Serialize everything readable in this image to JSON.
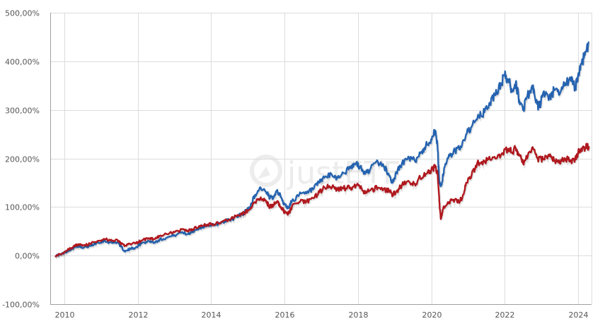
{
  "chart_data": {
    "type": "line",
    "title": "",
    "xlabel": "",
    "ylabel": "",
    "watermark": "justETF",
    "ylim": [
      -100,
      500
    ],
    "xlim": [
      2009.6,
      2024.35
    ],
    "y_ticks": [
      -100,
      0,
      100,
      200,
      300,
      400,
      500
    ],
    "y_tick_labels": [
      "-100,00%",
      "0,00%",
      "100,00%",
      "200,00%",
      "300,00%",
      "400,00%",
      "500,00%"
    ],
    "x_ticks": [
      2010,
      2012,
      2014,
      2016,
      2018,
      2020,
      2022,
      2024
    ],
    "x_tick_labels": [
      "2010",
      "2012",
      "2014",
      "2016",
      "2018",
      "2020",
      "2022",
      "2024"
    ],
    "grid": true,
    "legend": null,
    "series": [
      {
        "name": "Blue series",
        "color": "#2563b0",
        "points": [
          [
            2009.75,
            0
          ],
          [
            2009.9,
            2
          ],
          [
            2010.0,
            6
          ],
          [
            2010.2,
            14
          ],
          [
            2010.35,
            20
          ],
          [
            2010.5,
            15
          ],
          [
            2010.7,
            20
          ],
          [
            2010.9,
            27
          ],
          [
            2011.1,
            30
          ],
          [
            2011.3,
            26
          ],
          [
            2011.45,
            28
          ],
          [
            2011.55,
            18
          ],
          [
            2011.65,
            8
          ],
          [
            2011.8,
            14
          ],
          [
            2011.95,
            17
          ],
          [
            2012.1,
            25
          ],
          [
            2012.3,
            30
          ],
          [
            2012.45,
            27
          ],
          [
            2012.6,
            33
          ],
          [
            2012.8,
            37
          ],
          [
            2013.0,
            42
          ],
          [
            2013.2,
            48
          ],
          [
            2013.35,
            44
          ],
          [
            2013.5,
            50
          ],
          [
            2013.7,
            57
          ],
          [
            2013.9,
            63
          ],
          [
            2014.1,
            62
          ],
          [
            2014.3,
            70
          ],
          [
            2014.5,
            73
          ],
          [
            2014.7,
            80
          ],
          [
            2014.9,
            88
          ],
          [
            2015.05,
            100
          ],
          [
            2015.2,
            125
          ],
          [
            2015.35,
            140
          ],
          [
            2015.5,
            130
          ],
          [
            2015.6,
            118
          ],
          [
            2015.7,
            122
          ],
          [
            2015.8,
            135
          ],
          [
            2015.9,
            120
          ],
          [
            2016.0,
            105
          ],
          [
            2016.1,
            98
          ],
          [
            2016.2,
            112
          ],
          [
            2016.4,
            125
          ],
          [
            2016.6,
            128
          ],
          [
            2016.8,
            138
          ],
          [
            2016.95,
            150
          ],
          [
            2017.1,
            162
          ],
          [
            2017.3,
            165
          ],
          [
            2017.45,
            160
          ],
          [
            2017.6,
            170
          ],
          [
            2017.8,
            180
          ],
          [
            2017.95,
            190
          ],
          [
            2018.1,
            178
          ],
          [
            2018.2,
            168
          ],
          [
            2018.35,
            180
          ],
          [
            2018.55,
            192
          ],
          [
            2018.7,
            185
          ],
          [
            2018.85,
            165
          ],
          [
            2018.95,
            150
          ],
          [
            2019.05,
            170
          ],
          [
            2019.2,
            190
          ],
          [
            2019.4,
            200
          ],
          [
            2019.55,
            195
          ],
          [
            2019.7,
            210
          ],
          [
            2019.85,
            225
          ],
          [
            2020.0,
            240
          ],
          [
            2020.1,
            258
          ],
          [
            2020.17,
            225
          ],
          [
            2020.22,
            150
          ],
          [
            2020.28,
            145
          ],
          [
            2020.35,
            180
          ],
          [
            2020.5,
            205
          ],
          [
            2020.65,
            215
          ],
          [
            2020.8,
            225
          ],
          [
            2020.95,
            250
          ],
          [
            2021.1,
            265
          ],
          [
            2021.3,
            285
          ],
          [
            2021.45,
            295
          ],
          [
            2021.6,
            315
          ],
          [
            2021.75,
            330
          ],
          [
            2021.9,
            355
          ],
          [
            2022.0,
            370
          ],
          [
            2022.1,
            362
          ],
          [
            2022.2,
            340
          ],
          [
            2022.3,
            355
          ],
          [
            2022.4,
            320
          ],
          [
            2022.5,
            300
          ],
          [
            2022.6,
            325
          ],
          [
            2022.75,
            350
          ],
          [
            2022.85,
            315
          ],
          [
            2022.95,
            305
          ],
          [
            2023.05,
            335
          ],
          [
            2023.2,
            320
          ],
          [
            2023.35,
            340
          ],
          [
            2023.5,
            332
          ],
          [
            2023.65,
            355
          ],
          [
            2023.8,
            362
          ],
          [
            2023.92,
            345
          ],
          [
            2024.0,
            370
          ],
          [
            2024.1,
            395
          ],
          [
            2024.2,
            420
          ],
          [
            2024.3,
            440
          ]
        ]
      },
      {
        "name": "Red series",
        "color": "#b0181e",
        "points": [
          [
            2009.75,
            0
          ],
          [
            2009.9,
            3
          ],
          [
            2010.0,
            8
          ],
          [
            2010.2,
            16
          ],
          [
            2010.35,
            23
          ],
          [
            2010.5,
            20
          ],
          [
            2010.7,
            24
          ],
          [
            2010.9,
            30
          ],
          [
            2011.1,
            34
          ],
          [
            2011.3,
            30
          ],
          [
            2011.45,
            32
          ],
          [
            2011.55,
            24
          ],
          [
            2011.65,
            20
          ],
          [
            2011.8,
            24
          ],
          [
            2011.95,
            26
          ],
          [
            2012.1,
            31
          ],
          [
            2012.3,
            36
          ],
          [
            2012.45,
            34
          ],
          [
            2012.6,
            40
          ],
          [
            2012.8,
            44
          ],
          [
            2013.0,
            48
          ],
          [
            2013.2,
            54
          ],
          [
            2013.35,
            50
          ],
          [
            2013.5,
            54
          ],
          [
            2013.7,
            60
          ],
          [
            2013.9,
            64
          ],
          [
            2014.1,
            64
          ],
          [
            2014.3,
            70
          ],
          [
            2014.5,
            74
          ],
          [
            2014.7,
            82
          ],
          [
            2014.9,
            88
          ],
          [
            2015.05,
            95
          ],
          [
            2015.2,
            110
          ],
          [
            2015.35,
            120
          ],
          [
            2015.5,
            112
          ],
          [
            2015.6,
            100
          ],
          [
            2015.7,
            105
          ],
          [
            2015.8,
            112
          ],
          [
            2015.9,
            100
          ],
          [
            2016.0,
            90
          ],
          [
            2016.1,
            85
          ],
          [
            2016.2,
            100
          ],
          [
            2016.4,
            110
          ],
          [
            2016.6,
            112
          ],
          [
            2016.8,
            118
          ],
          [
            2016.95,
            130
          ],
          [
            2017.1,
            140
          ],
          [
            2017.3,
            142
          ],
          [
            2017.45,
            135
          ],
          [
            2017.6,
            138
          ],
          [
            2017.8,
            140
          ],
          [
            2017.95,
            145
          ],
          [
            2018.1,
            138
          ],
          [
            2018.2,
            128
          ],
          [
            2018.35,
            135
          ],
          [
            2018.55,
            140
          ],
          [
            2018.7,
            138
          ],
          [
            2018.85,
            132
          ],
          [
            2018.95,
            125
          ],
          [
            2019.05,
            132
          ],
          [
            2019.2,
            145
          ],
          [
            2019.4,
            152
          ],
          [
            2019.55,
            148
          ],
          [
            2019.7,
            160
          ],
          [
            2019.85,
            168
          ],
          [
            2020.0,
            175
          ],
          [
            2020.1,
            182
          ],
          [
            2020.17,
            170
          ],
          [
            2020.22,
            110
          ],
          [
            2020.26,
            75
          ],
          [
            2020.32,
            95
          ],
          [
            2020.45,
            110
          ],
          [
            2020.6,
            115
          ],
          [
            2020.75,
            112
          ],
          [
            2020.85,
            120
          ],
          [
            2020.95,
            150
          ],
          [
            2021.1,
            165
          ],
          [
            2021.25,
            190
          ],
          [
            2021.45,
            195
          ],
          [
            2021.6,
            198
          ],
          [
            2021.8,
            202
          ],
          [
            2021.95,
            210
          ],
          [
            2022.1,
            220
          ],
          [
            2022.2,
            212
          ],
          [
            2022.3,
            222
          ],
          [
            2022.4,
            208
          ],
          [
            2022.5,
            190
          ],
          [
            2022.65,
            212
          ],
          [
            2022.8,
            218
          ],
          [
            2022.9,
            200
          ],
          [
            2023.05,
            198
          ],
          [
            2023.2,
            208
          ],
          [
            2023.35,
            195
          ],
          [
            2023.5,
            190
          ],
          [
            2023.65,
            200
          ],
          [
            2023.8,
            193
          ],
          [
            2023.92,
            198
          ],
          [
            2024.05,
            218
          ],
          [
            2024.2,
            222
          ],
          [
            2024.3,
            225
          ]
        ]
      }
    ]
  }
}
